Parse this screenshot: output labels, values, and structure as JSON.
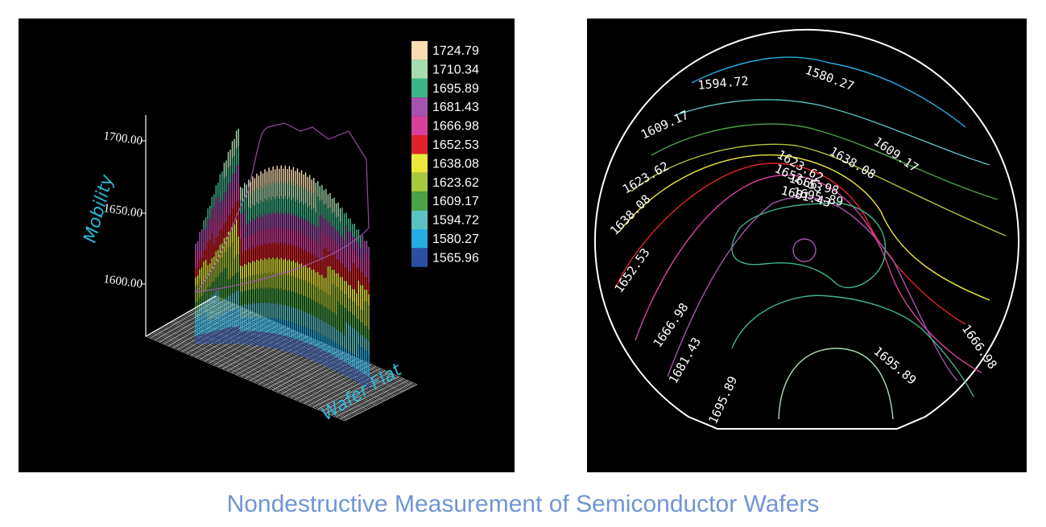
{
  "caption": "Nondestructive Measurement of Semiconductor Wafers",
  "chart_data": [
    {
      "type": "surface3d",
      "zlabel": "Mobility",
      "xlabel": "Wafer Flat",
      "z_ticks": [
        "1700.00",
        "1650.00",
        "1600.00"
      ],
      "legend": [
        {
          "value": "1724.79",
          "color": "#f6dcb0"
        },
        {
          "value": "1710.34",
          "color": "#a7dcb0"
        },
        {
          "value": "1695.89",
          "color": "#3fb58a"
        },
        {
          "value": "1681.43",
          "color": "#a652b0"
        },
        {
          "value": "1666.98",
          "color": "#d8409c"
        },
        {
          "value": "1652.53",
          "color": "#e0232a"
        },
        {
          "value": "1638.08",
          "color": "#ece83a"
        },
        {
          "value": "1623.62",
          "color": "#a7c93c"
        },
        {
          "value": "1609.17",
          "color": "#4aa344"
        },
        {
          "value": "1594.72",
          "color": "#5bc2c4"
        },
        {
          "value": "1580.27",
          "color": "#24ace3"
        },
        {
          "value": "1565.96",
          "color": "#2c4fa3"
        }
      ],
      "zlim": [
        1565.96,
        1724.79
      ]
    },
    {
      "type": "contour",
      "contour_labels": [
        {
          "text": "1580.27"
        },
        {
          "text": "1594.72"
        },
        {
          "text": "1609.17"
        },
        {
          "text": "1609.17"
        },
        {
          "text": "1623.62"
        },
        {
          "text": "1623.62"
        },
        {
          "text": "1638.08"
        },
        {
          "text": "1638.08"
        },
        {
          "text": "1652.53"
        },
        {
          "text": "1652.53"
        },
        {
          "text": "1666.98"
        },
        {
          "text": "1666.98"
        },
        {
          "text": "1666.98"
        },
        {
          "text": "1681.43"
        },
        {
          "text": "1681.43"
        },
        {
          "text": "1695.89"
        },
        {
          "text": "1695.89"
        },
        {
          "text": "1695.89"
        }
      ]
    }
  ]
}
